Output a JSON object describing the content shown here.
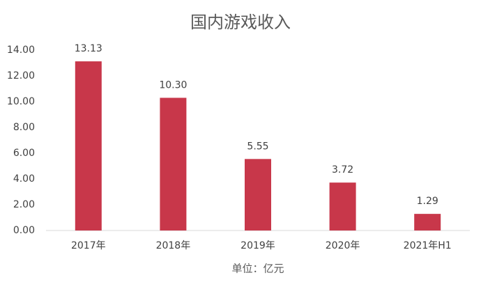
{
  "chart_data": {
    "type": "bar",
    "title": "国内游戏收入",
    "x_label": "单位：亿元",
    "categories": [
      "2017年",
      "2018年",
      "2019年",
      "2020年",
      "2021年H1"
    ],
    "values": [
      13.13,
      10.3,
      5.55,
      3.72,
      1.29
    ],
    "value_labels": [
      "13.13",
      "10.30",
      "5.55",
      "3.72",
      "1.29"
    ],
    "color": "#c8374a",
    "ylim": [
      0,
      14
    ],
    "yticks": [
      {
        "value": 0,
        "label": "0.00"
      },
      {
        "value": 2,
        "label": "2.00"
      },
      {
        "value": 4,
        "label": "4.00"
      },
      {
        "value": 6,
        "label": "6.00"
      },
      {
        "value": 8,
        "label": "8.00"
      },
      {
        "value": 10,
        "label": "10.00"
      },
      {
        "value": 12,
        "label": "12.00"
      },
      {
        "value": 14,
        "label": "14.00"
      }
    ],
    "grid": false
  }
}
